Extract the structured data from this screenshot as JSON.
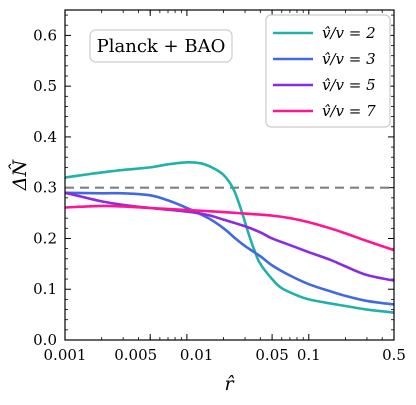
{
  "chart_data": {
    "type": "line",
    "xlabel": "r̂",
    "ylabel": "ΔN̂",
    "xscale": "log",
    "xlim": [
      0.001,
      0.5
    ],
    "ylim": [
      0.0,
      0.65
    ],
    "xticks": [
      {
        "value": 0.001,
        "label": "0.001"
      },
      {
        "value": 0.005,
        "label": "0.005"
      },
      {
        "value": 0.01,
        "label": "0.01"
      },
      {
        "value": 0.05,
        "label": "0.05"
      },
      {
        "value": 0.1,
        "label": "0.1"
      },
      {
        "value": 0.5,
        "label": "0.5"
      }
    ],
    "yticks": [
      {
        "value": 0.0,
        "label": "0.0"
      },
      {
        "value": 0.1,
        "label": "0.1"
      },
      {
        "value": 0.2,
        "label": "0.2"
      },
      {
        "value": 0.3,
        "label": "0.3"
      },
      {
        "value": 0.4,
        "label": "0.4"
      },
      {
        "value": 0.5,
        "label": "0.5"
      },
      {
        "value": 0.6,
        "label": "0.6"
      }
    ],
    "annotation": "Planck + BAO",
    "reference_line": {
      "y": 0.3,
      "style": "dashed",
      "color": "#808080"
    },
    "legend_position": "top-right",
    "series": [
      {
        "name": "v̂/v = 2",
        "color": "#20b2aa",
        "points": [
          [
            0.001,
            0.32
          ],
          [
            0.0015,
            0.326
          ],
          [
            0.002,
            0.33
          ],
          [
            0.003,
            0.335
          ],
          [
            0.005,
            0.34
          ],
          [
            0.007,
            0.346
          ],
          [
            0.01,
            0.35
          ],
          [
            0.013,
            0.348
          ],
          [
            0.016,
            0.34
          ],
          [
            0.02,
            0.325
          ],
          [
            0.024,
            0.298
          ],
          [
            0.028,
            0.255
          ],
          [
            0.032,
            0.21
          ],
          [
            0.036,
            0.175
          ],
          [
            0.04,
            0.15
          ],
          [
            0.05,
            0.12
          ],
          [
            0.06,
            0.102
          ],
          [
            0.08,
            0.088
          ],
          [
            0.1,
            0.08
          ],
          [
            0.15,
            0.072
          ],
          [
            0.2,
            0.067
          ],
          [
            0.3,
            0.06
          ],
          [
            0.5,
            0.054
          ]
        ]
      },
      {
        "name": "v̂/v = 3",
        "color": "#4169e1",
        "points": [
          [
            0.001,
            0.29
          ],
          [
            0.002,
            0.289
          ],
          [
            0.003,
            0.289
          ],
          [
            0.005,
            0.285
          ],
          [
            0.007,
            0.275
          ],
          [
            0.01,
            0.26
          ],
          [
            0.015,
            0.24
          ],
          [
            0.02,
            0.22
          ],
          [
            0.025,
            0.2
          ],
          [
            0.03,
            0.185
          ],
          [
            0.04,
            0.165
          ],
          [
            0.05,
            0.147
          ],
          [
            0.07,
            0.127
          ],
          [
            0.1,
            0.11
          ],
          [
            0.15,
            0.096
          ],
          [
            0.2,
            0.087
          ],
          [
            0.3,
            0.077
          ],
          [
            0.5,
            0.07
          ]
        ]
      },
      {
        "name": "v̂/v = 5",
        "color": "#8a2be2",
        "points": [
          [
            0.001,
            0.29
          ],
          [
            0.0015,
            0.28
          ],
          [
            0.002,
            0.273
          ],
          [
            0.003,
            0.266
          ],
          [
            0.005,
            0.26
          ],
          [
            0.01,
            0.253
          ],
          [
            0.015,
            0.246
          ],
          [
            0.02,
            0.237
          ],
          [
            0.03,
            0.224
          ],
          [
            0.04,
            0.212
          ],
          [
            0.05,
            0.2
          ],
          [
            0.07,
            0.187
          ],
          [
            0.1,
            0.173
          ],
          [
            0.15,
            0.158
          ],
          [
            0.2,
            0.145
          ],
          [
            0.3,
            0.128
          ],
          [
            0.5,
            0.117
          ]
        ]
      },
      {
        "name": "v̂/v = 7",
        "color": "#ff1493",
        "points": [
          [
            0.001,
            0.261
          ],
          [
            0.002,
            0.264
          ],
          [
            0.003,
            0.263
          ],
          [
            0.005,
            0.26
          ],
          [
            0.01,
            0.256
          ],
          [
            0.02,
            0.252
          ],
          [
            0.03,
            0.249
          ],
          [
            0.05,
            0.245
          ],
          [
            0.07,
            0.24
          ],
          [
            0.1,
            0.232
          ],
          [
            0.15,
            0.22
          ],
          [
            0.2,
            0.21
          ],
          [
            0.3,
            0.195
          ],
          [
            0.5,
            0.177
          ]
        ]
      }
    ]
  }
}
